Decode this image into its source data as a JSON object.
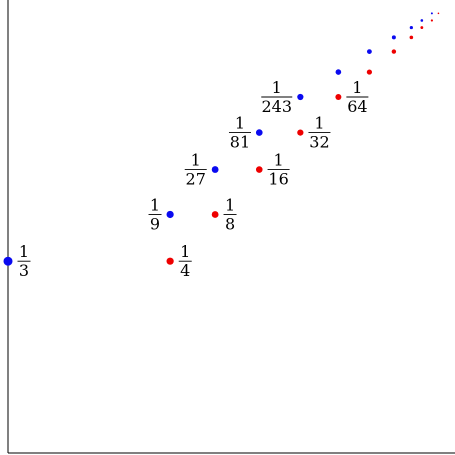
{
  "colors": {
    "blue": "#0a0af0",
    "red": "#ee0000",
    "axis": "#000000"
  },
  "chart_data": {
    "type": "scatter",
    "xlim": [
      0,
      1
    ],
    "ylim": [
      0,
      1
    ],
    "series": [
      {
        "color": "blue",
        "points": [
          {
            "x": 0.0,
            "y": 0.431,
            "r": 4.5,
            "num": "1",
            "den": "3",
            "label_side": "right"
          },
          {
            "x": 0.371,
            "y": 0.536,
            "r": 3.6,
            "num": "1",
            "den": "9",
            "label_side": "left"
          },
          {
            "x": 0.474,
            "y": 0.637,
            "r": 3.4,
            "num": "1",
            "den": "27",
            "label_side": "left"
          },
          {
            "x": 0.575,
            "y": 0.72,
            "r": 3.3,
            "num": "1",
            "den": "81",
            "label_side": "left"
          },
          {
            "x": 0.669,
            "y": 0.8,
            "r": 3.1,
            "num": "1",
            "den": "243",
            "label_side": "left"
          },
          {
            "x": 0.756,
            "y": 0.856,
            "r": 2.8
          },
          {
            "x": 0.827,
            "y": 0.902,
            "r": 2.4
          },
          {
            "x": 0.883,
            "y": 0.934,
            "r": 2.0
          },
          {
            "x": 0.923,
            "y": 0.956,
            "r": 1.6
          },
          {
            "x": 0.947,
            "y": 0.972,
            "r": 1.3
          },
          {
            "x": 0.97,
            "y": 0.988,
            "r": 1.0
          }
        ]
      },
      {
        "color": "red",
        "points": [
          {
            "x": 0.371,
            "y": 0.431,
            "r": 3.6,
            "num": "1",
            "den": "4",
            "label_side": "right"
          },
          {
            "x": 0.474,
            "y": 0.536,
            "r": 3.4,
            "num": "1",
            "den": "8",
            "label_side": "right"
          },
          {
            "x": 0.575,
            "y": 0.637,
            "r": 3.3,
            "num": "1",
            "den": "16",
            "label_side": "right"
          },
          {
            "x": 0.669,
            "y": 0.72,
            "r": 3.1,
            "num": "1",
            "den": "32",
            "label_side": "right"
          },
          {
            "x": 0.756,
            "y": 0.8,
            "r": 3.0,
            "num": "1",
            "den": "64",
            "label_side": "right"
          },
          {
            "x": 0.827,
            "y": 0.856,
            "r": 2.6
          },
          {
            "x": 0.883,
            "y": 0.902,
            "r": 2.2
          },
          {
            "x": 0.923,
            "y": 0.934,
            "r": 1.8
          },
          {
            "x": 0.947,
            "y": 0.956,
            "r": 1.4
          },
          {
            "x": 0.97,
            "y": 0.972,
            "r": 1.1
          },
          {
            "x": 0.985,
            "y": 0.988,
            "r": 0.8
          }
        ]
      }
    ]
  }
}
